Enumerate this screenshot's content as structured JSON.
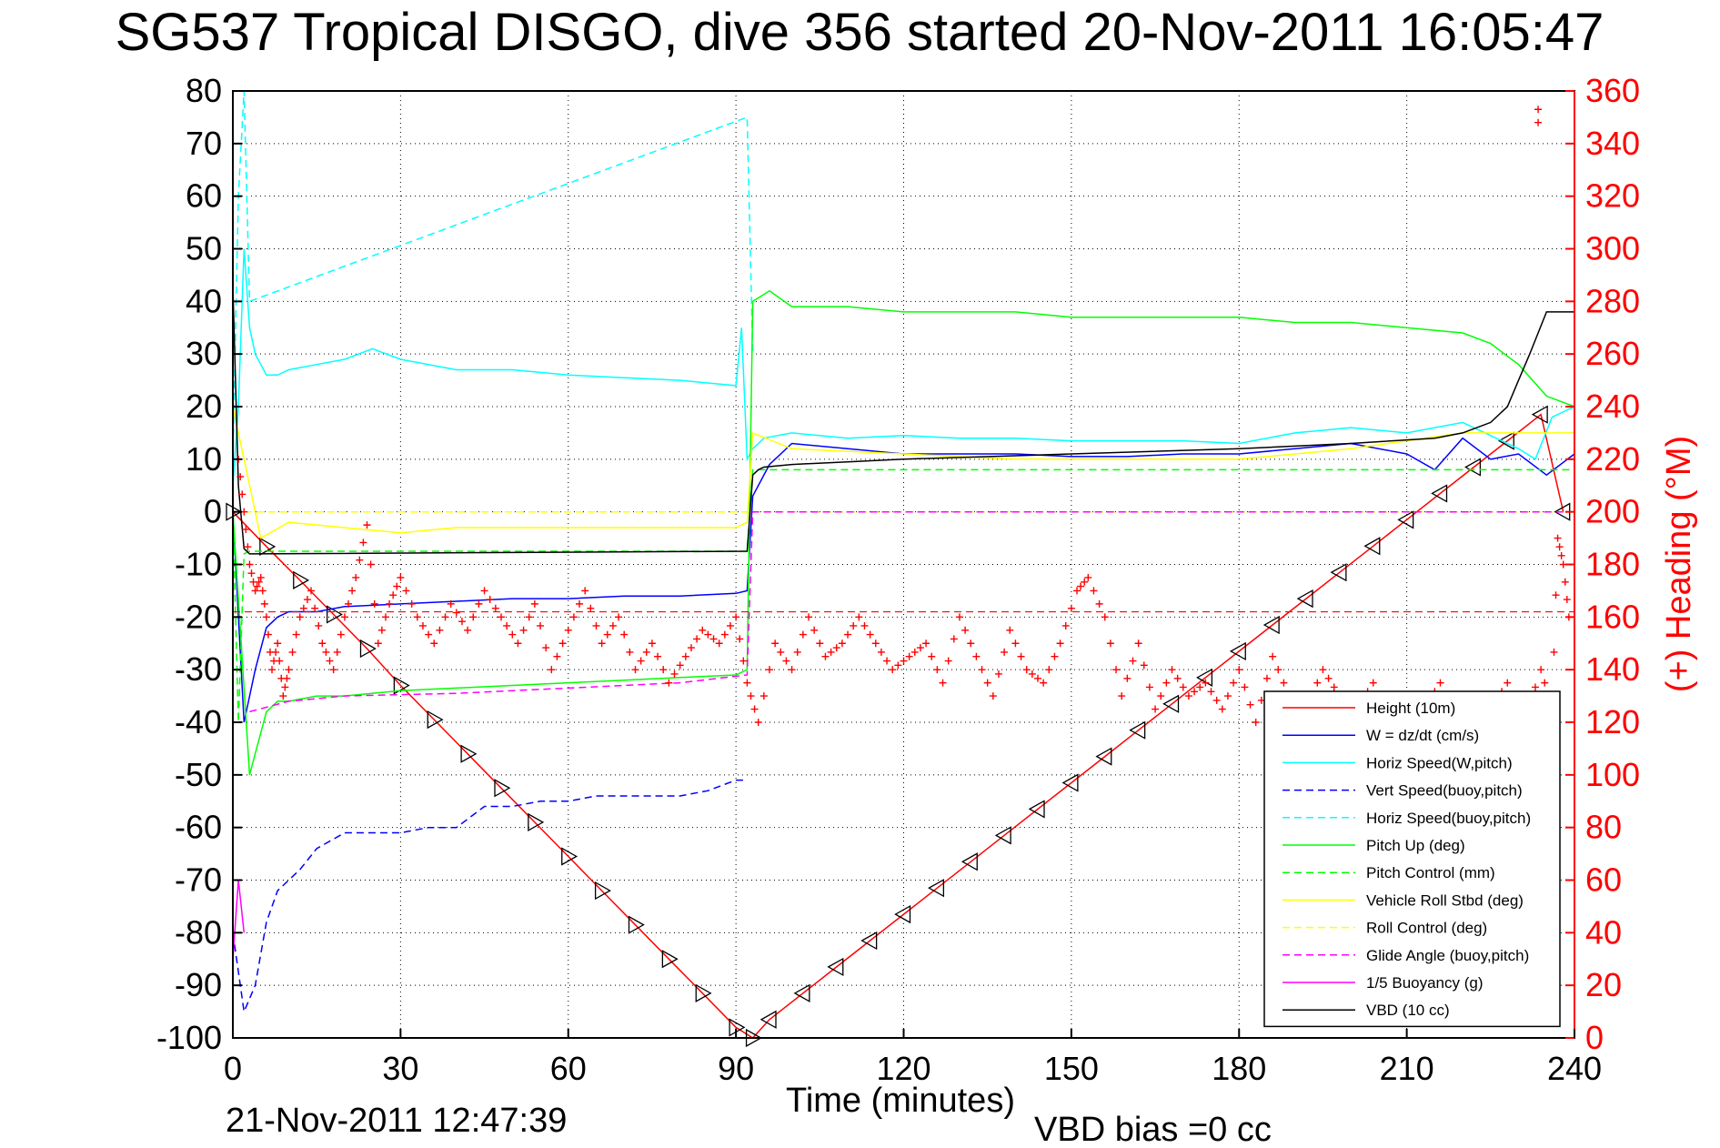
{
  "chart_data": {
    "type": "line",
    "title": "SG537 Tropical DISGO, dive 356 started 20-Nov-2011 16:05:47",
    "xlabel": "Time (minutes)",
    "ylabel": "",
    "y2label": "(+) Heading (°M)",
    "xlim": [
      0,
      240
    ],
    "ylim": [
      -100,
      80
    ],
    "y2lim": [
      0,
      360
    ],
    "xticks": [
      "0",
      "30",
      "60",
      "90",
      "120",
      "150",
      "180",
      "210",
      "240"
    ],
    "yticks": [
      "80",
      "70",
      "60",
      "50",
      "40",
      "30",
      "20",
      "10",
      "0",
      "-10",
      "-20",
      "-30",
      "-40",
      "-50",
      "-60",
      "-70",
      "-80",
      "-90",
      "-100"
    ],
    "y2ticks": [
      "360",
      "340",
      "320",
      "300",
      "280",
      "260",
      "240",
      "220",
      "200",
      "180",
      "160",
      "140",
      "120",
      "100",
      "80",
      "60",
      "40",
      "20",
      "0"
    ],
    "grid": true,
    "legend_position": "lower-right",
    "footer_left": "21-Nov-2011 12:47:39",
    "footer_right": "VBD bias =0 cc",
    "series": [
      {
        "name": "Height (10m)",
        "color": "#ff0000",
        "style": "solid",
        "marker": "triangle",
        "x": [
          0,
          6,
          12,
          18,
          24,
          30,
          36,
          42,
          48,
          54,
          60,
          66,
          72,
          78,
          84,
          90,
          93,
          96,
          102,
          108,
          114,
          120,
          126,
          132,
          138,
          144,
          150,
          156,
          162,
          168,
          174,
          180,
          186,
          192,
          198,
          204,
          210,
          216,
          222,
          228,
          234,
          238
        ],
        "y": [
          0,
          -6.6,
          -13,
          -19.5,
          -26,
          -33,
          -39.5,
          -46,
          -52.5,
          -59,
          -65.5,
          -72,
          -78.5,
          -85,
          -91.5,
          -98,
          -100,
          -96.5,
          -91.5,
          -86.5,
          -81.5,
          -76.5,
          -71.5,
          -66.5,
          -61.5,
          -56.5,
          -51.5,
          -46.5,
          -41.5,
          -36.5,
          -31.5,
          -26.5,
          -21.5,
          -16.5,
          -11.5,
          -6.5,
          -1.5,
          3.5,
          8.5,
          13.5,
          18.5,
          0
        ]
      },
      {
        "name": "W = dz/dt (cm/s)",
        "color": "#0000ff",
        "style": "solid",
        "x": [
          0,
          2,
          4,
          6,
          8,
          10,
          15,
          20,
          30,
          40,
          50,
          60,
          70,
          80,
          90,
          92,
          93,
          96,
          100,
          110,
          120,
          130,
          140,
          150,
          160,
          170,
          180,
          190,
          200,
          210,
          215,
          220,
          225,
          230,
          235,
          240
        ],
        "y": [
          0,
          -40,
          -30,
          -22,
          -20,
          -19,
          -19,
          -18,
          -17.5,
          -17,
          -16.5,
          -16.5,
          -16,
          -16,
          -15.5,
          -15,
          3,
          9,
          13,
          12,
          11,
          11,
          11,
          10.5,
          10.5,
          11,
          11,
          12,
          13,
          11,
          8,
          14,
          10,
          11,
          7,
          11
        ]
      },
      {
        "name": "Horiz Speed(W,pitch)",
        "color": "#00ffff",
        "style": "solid",
        "x": [
          0,
          1,
          2,
          3,
          4,
          5,
          6,
          8,
          10,
          15,
          20,
          25,
          30,
          40,
          50,
          60,
          70,
          80,
          90,
          91,
          92,
          93,
          95,
          100,
          110,
          120,
          130,
          140,
          150,
          160,
          170,
          180,
          190,
          200,
          210,
          220,
          230,
          233,
          236,
          240
        ],
        "y": [
          5,
          20,
          50,
          35,
          30,
          28,
          26,
          26,
          27,
          28,
          29,
          31,
          29,
          27,
          27,
          26,
          25.5,
          25,
          24,
          35,
          10,
          12,
          14,
          15,
          14,
          14.5,
          14,
          14,
          13.5,
          13.5,
          13.5,
          13,
          15,
          16,
          15,
          17,
          12,
          10,
          18,
          20
        ]
      },
      {
        "name": "Vert Speed(buoy,pitch)",
        "color": "#0000ff",
        "style": "dashed",
        "x": [
          0,
          2,
          4,
          6,
          8,
          10,
          12,
          15,
          20,
          25,
          30,
          35,
          40,
          45,
          50,
          55,
          60,
          65,
          70,
          75,
          80,
          85,
          90,
          92
        ],
        "y": [
          -80,
          -95,
          -90,
          -78,
          -72,
          -70,
          -68,
          -64,
          -61,
          -61,
          -61,
          -60,
          -60,
          -56,
          -56,
          -55,
          -55,
          -54,
          -54,
          -54,
          -54,
          -53,
          -51,
          -51
        ]
      },
      {
        "name": "Horiz Speed(buoy,pitch)",
        "color": "#00ffff",
        "style": "dashed",
        "x": [
          0,
          1,
          2,
          3,
          92,
          93
        ],
        "y": [
          10,
          60,
          80,
          40,
          75,
          30
        ]
      },
      {
        "name": "Pitch Up (deg)",
        "color": "#00ff00",
        "style": "solid",
        "x": [
          0,
          3,
          6,
          8,
          10,
          15,
          20,
          30,
          40,
          50,
          60,
          70,
          80,
          90,
          92,
          93,
          96,
          100,
          110,
          120,
          130,
          140,
          150,
          160,
          170,
          180,
          190,
          200,
          210,
          220,
          225,
          230,
          235,
          240
        ],
        "y": [
          0,
          -50,
          -38,
          -36,
          -36,
          -35,
          -35,
          -34,
          -33.5,
          -33,
          -32.5,
          -32,
          -31.5,
          -31,
          -30,
          40,
          42,
          39,
          39,
          38,
          38,
          38,
          37,
          37,
          37,
          37,
          36,
          36,
          35,
          34,
          32,
          28,
          22,
          20
        ]
      },
      {
        "name": "Pitch Control (mm)",
        "color": "#00ff00",
        "style": "dashed",
        "x": [
          0,
          1,
          2,
          3,
          92,
          93,
          240
        ],
        "y": [
          0,
          -40,
          -8,
          -7.5,
          -7.5,
          8,
          8
        ]
      },
      {
        "name": "Vehicle Roll Stbd (deg)",
        "color": "#ffff00",
        "style": "solid",
        "x": [
          0,
          5,
          10,
          20,
          30,
          40,
          50,
          60,
          70,
          80,
          90,
          92,
          93,
          100,
          120,
          140,
          160,
          180,
          200,
          220,
          240
        ],
        "y": [
          20,
          -5,
          -2,
          -3,
          -4,
          -3,
          -3,
          -3,
          -3,
          -3,
          -3,
          -2,
          15,
          12,
          11,
          10,
          10,
          10,
          12,
          15,
          15
        ]
      },
      {
        "name": "Roll Control (deg)",
        "color": "#ffff00",
        "style": "dashed",
        "x": [
          0,
          240
        ],
        "y": [
          0,
          0
        ]
      },
      {
        "name": "Glide Angle (buoy,pitch)",
        "color": "#ff00ff",
        "style": "dashed",
        "x": [
          3,
          10,
          20,
          40,
          60,
          80,
          92,
          93,
          240
        ],
        "y": [
          -38,
          -36,
          -35,
          -34.5,
          -33.5,
          -32.5,
          -31,
          0,
          0
        ]
      },
      {
        "name": "1/5 Buoyancy (g)",
        "color": "#ff00ff",
        "style": "solid",
        "x": [
          0,
          1,
          2
        ],
        "y": [
          -85,
          -70,
          -80
        ]
      },
      {
        "name": "VBD (10 cc)",
        "color": "#000000",
        "style": "solid",
        "x": [
          0,
          1,
          2,
          3,
          92,
          93,
          94,
          95,
          100,
          110,
          120,
          150,
          180,
          200,
          215,
          220,
          225,
          228,
          230,
          232,
          235,
          240
        ],
        "y": [
          43,
          5,
          -7,
          -8,
          -7.5,
          7,
          8,
          8.5,
          9,
          9.5,
          10,
          11,
          12,
          13,
          14,
          15,
          17,
          20,
          25,
          30,
          38,
          38
        ]
      }
    ],
    "heading_series": {
      "name": "(+) Heading",
      "color": "#ff0000",
      "marker": "plus",
      "axis": "right",
      "x": [
        1,
        2,
        3,
        4,
        5,
        6,
        7,
        8,
        9,
        10,
        12,
        14,
        16,
        18,
        20,
        22,
        24,
        26,
        28,
        30,
        33,
        36,
        39,
        42,
        45,
        48,
        51,
        54,
        57,
        60,
        63,
        66,
        69,
        72,
        75,
        78,
        81,
        84,
        87,
        90,
        92,
        94,
        97,
        100,
        103,
        106,
        109,
        112,
        115,
        118,
        121,
        124,
        127,
        130,
        133,
        136,
        139,
        142,
        145,
        148,
        151,
        153,
        156,
        159,
        162,
        165,
        168,
        171,
        174,
        177,
        180,
        183,
        186,
        189,
        192,
        195,
        198,
        201,
        204,
        207,
        210,
        213,
        216,
        219,
        222,
        225,
        228,
        231,
        234,
        236,
        237,
        238,
        239
      ],
      "y": [
        220,
        200,
        180,
        170,
        175,
        160,
        140,
        150,
        130,
        140,
        160,
        170,
        150,
        140,
        160,
        175,
        195,
        150,
        165,
        175,
        160,
        150,
        165,
        155,
        170,
        160,
        150,
        165,
        140,
        155,
        170,
        150,
        160,
        140,
        150,
        135,
        145,
        155,
        150,
        160,
        135,
        120,
        150,
        140,
        160,
        145,
        150,
        160,
        150,
        140,
        145,
        150,
        135,
        160,
        145,
        130,
        155,
        140,
        135,
        150,
        170,
        175,
        160,
        130,
        150,
        125,
        140,
        130,
        135,
        125,
        140,
        120,
        145,
        130,
        125,
        140,
        130,
        125,
        135,
        120,
        130,
        125,
        135,
        120,
        130,
        125,
        135,
        120,
        140,
        125,
        190,
        180,
        160
      ]
    },
    "heading_dashed_level": 162,
    "heading_outliers": {
      "x": [
        233.5,
        233.5
      ],
      "y": [
        353,
        348
      ]
    }
  }
}
